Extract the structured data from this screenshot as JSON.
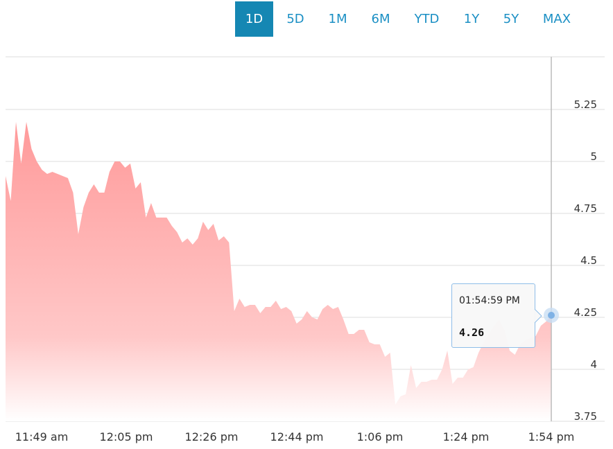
{
  "ranges": [
    {
      "label": "1D",
      "active": true
    },
    {
      "label": "5D",
      "active": false
    },
    {
      "label": "1M",
      "active": false
    },
    {
      "label": "6M",
      "active": false
    },
    {
      "label": "YTD",
      "active": false
    },
    {
      "label": "1Y",
      "active": false
    },
    {
      "label": "5Y",
      "active": false
    },
    {
      "label": "MAX",
      "active": false
    }
  ],
  "tooltip": {
    "time": "01:54:59 PM",
    "value": "4.26"
  },
  "colors": {
    "accent": "#1587b3",
    "area_top": "#ff9a9a",
    "area_bottom": "#ffffff",
    "crosshair": "#bbbbbb",
    "marker": "#7fb2e5"
  },
  "chart_data": {
    "type": "area",
    "title": "",
    "xlabel": "",
    "ylabel": "",
    "y_ticks": [
      "5.25",
      "5",
      "4.75",
      "4.5",
      "4.25",
      "4",
      "3.75"
    ],
    "y_tick_values": [
      5.25,
      5,
      4.75,
      4.5,
      4.25,
      4,
      3.75
    ],
    "x_ticks": [
      "11:49 am",
      "12:05 pm",
      "12:26 pm",
      "12:44 pm",
      "1:06 pm",
      "1:24 pm",
      "1:54 pm"
    ],
    "ylim": [
      3.75,
      5.5
    ],
    "grid": true,
    "series": [
      {
        "values": [
          4.93,
          4.81,
          5.19,
          4.99,
          5.19,
          5.06,
          5.0,
          4.96,
          4.94,
          4.95,
          4.94,
          4.93,
          4.92,
          4.85,
          4.65,
          4.78,
          4.85,
          4.89,
          4.85,
          4.85,
          4.95,
          5.0,
          5.0,
          4.97,
          4.99,
          4.87,
          4.9,
          4.73,
          4.8,
          4.73,
          4.73,
          4.73,
          4.69,
          4.66,
          4.61,
          4.63,
          4.6,
          4.63,
          4.71,
          4.67,
          4.7,
          4.62,
          4.64,
          4.61,
          4.28,
          4.34,
          4.3,
          4.31,
          4.31,
          4.27,
          4.3,
          4.3,
          4.33,
          4.29,
          4.3,
          4.28,
          4.22,
          4.24,
          4.28,
          4.25,
          4.24,
          4.29,
          4.31,
          4.29,
          4.3,
          4.24,
          4.17,
          4.17,
          4.19,
          4.19,
          4.13,
          4.12,
          4.12,
          4.06,
          4.08,
          3.83,
          3.87,
          3.88,
          4.02,
          3.91,
          3.94,
          3.94,
          3.95,
          3.95,
          4.0,
          4.09,
          3.93,
          3.96,
          3.96,
          4.0,
          4.01,
          4.08,
          4.13,
          4.17,
          4.21,
          4.24,
          4.19,
          4.09,
          4.07,
          4.12,
          4.14,
          4.15,
          4.16,
          4.21,
          4.23,
          4.26
        ]
      }
    ]
  }
}
